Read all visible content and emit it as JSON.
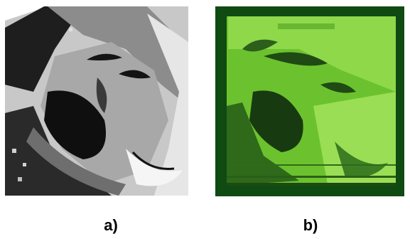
{
  "figure": {
    "panels": [
      {
        "label": "a)",
        "image": "grayscale-posterized-face-photo"
      },
      {
        "label": "b)",
        "image": "green-display-face-photo"
      }
    ]
  }
}
